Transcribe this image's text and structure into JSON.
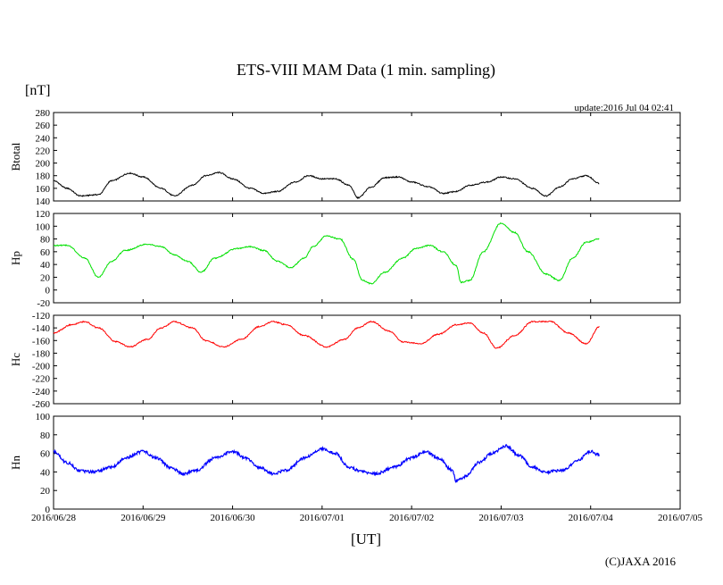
{
  "chart_data": {
    "type": "line",
    "title": "ETS-VIII MAM Data (1 min. sampling)",
    "unit_label": "[nT]",
    "update_label": "update:2016 Jul 04 02:41",
    "xlabel": "[UT]",
    "copyright": "(C)JAXA 2016",
    "x_ticks": [
      "2016/06/28",
      "2016/06/29",
      "2016/06/30",
      "2016/07/01",
      "2016/07/02",
      "2016/07/03",
      "2016/07/04",
      "2016/07/05"
    ],
    "x_unit": "days since 2016/06/28 00:00 UT",
    "xlim": [
      0,
      7
    ],
    "panels": [
      {
        "name": "Btotal",
        "color": "#000000",
        "ylim": [
          140,
          280
        ],
        "ticks": [
          "280",
          "260",
          "240",
          "220",
          "200",
          "180",
          "160",
          "140"
        ],
        "x": [
          0,
          0.15,
          0.3,
          0.5,
          0.65,
          0.85,
          1.0,
          1.2,
          1.35,
          1.55,
          1.7,
          1.85,
          2.0,
          2.2,
          2.35,
          2.5,
          2.7,
          2.85,
          3.0,
          3.15,
          3.3,
          3.4,
          3.55,
          3.7,
          3.85,
          4.0,
          4.2,
          4.35,
          4.5,
          4.65,
          4.85,
          5.0,
          5.15,
          5.35,
          5.5,
          5.65,
          5.8,
          5.95,
          6.1
        ],
        "values": [
          172,
          160,
          148,
          150,
          172,
          184,
          178,
          160,
          148,
          165,
          180,
          185,
          175,
          160,
          152,
          155,
          170,
          180,
          175,
          175,
          165,
          145,
          162,
          177,
          178,
          170,
          162,
          152,
          155,
          165,
          170,
          178,
          175,
          160,
          148,
          162,
          175,
          180,
          168
        ]
      },
      {
        "name": "Hp",
        "color": "#00e000",
        "ylim": [
          -20,
          120
        ],
        "ticks": [
          "120",
          "100",
          "80",
          "60",
          "40",
          "20",
          "0",
          "-20"
        ],
        "x": [
          0,
          0.15,
          0.35,
          0.5,
          0.65,
          0.8,
          1.05,
          1.2,
          1.35,
          1.5,
          1.65,
          1.8,
          2.05,
          2.2,
          2.35,
          2.5,
          2.65,
          2.8,
          2.9,
          3.05,
          3.2,
          3.35,
          3.45,
          3.55,
          3.7,
          3.9,
          4.05,
          4.2,
          4.35,
          4.5,
          4.55,
          4.65,
          4.8,
          5.0,
          5.15,
          5.3,
          5.5,
          5.65,
          5.8,
          5.95,
          6.1
        ],
        "values": [
          70,
          70,
          50,
          20,
          45,
          62,
          72,
          68,
          55,
          45,
          28,
          50,
          65,
          68,
          62,
          45,
          35,
          50,
          68,
          85,
          80,
          48,
          15,
          10,
          28,
          50,
          65,
          70,
          60,
          38,
          12,
          15,
          60,
          105,
          90,
          60,
          25,
          15,
          50,
          75,
          80
        ]
      },
      {
        "name": "Hc",
        "color": "#ff0000",
        "ylim": [
          -260,
          -120
        ],
        "ticks": [
          "-120",
          "-140",
          "-160",
          "-180",
          "-200",
          "-220",
          "-240",
          "-260"
        ],
        "x": [
          0,
          0.2,
          0.35,
          0.5,
          0.7,
          0.85,
          1.05,
          1.2,
          1.35,
          1.55,
          1.7,
          1.9,
          2.1,
          2.3,
          2.45,
          2.6,
          2.8,
          3.05,
          3.25,
          3.4,
          3.55,
          3.75,
          3.9,
          4.1,
          4.3,
          4.5,
          4.65,
          4.8,
          4.95,
          5.15,
          5.35,
          5.55,
          5.75,
          5.95,
          6.1
        ],
        "values": [
          -148,
          -135,
          -130,
          -140,
          -162,
          -170,
          -158,
          -140,
          -130,
          -140,
          -160,
          -170,
          -158,
          -138,
          -130,
          -135,
          -152,
          -170,
          -158,
          -140,
          -130,
          -145,
          -162,
          -165,
          -150,
          -135,
          -132,
          -148,
          -172,
          -152,
          -130,
          -130,
          -148,
          -165,
          -138
        ]
      },
      {
        "name": "Hn",
        "color": "#0000ff",
        "ylim": [
          0,
          100
        ],
        "ticks": [
          "100",
          "80",
          "60",
          "40",
          "20",
          "0"
        ],
        "x": [
          0,
          0.15,
          0.3,
          0.45,
          0.65,
          0.8,
          1.0,
          1.15,
          1.3,
          1.45,
          1.6,
          1.8,
          2.0,
          2.15,
          2.3,
          2.45,
          2.6,
          2.8,
          3.0,
          3.15,
          3.3,
          3.45,
          3.6,
          3.8,
          4.0,
          4.15,
          4.3,
          4.45,
          4.5,
          4.6,
          4.75,
          4.9,
          5.05,
          5.2,
          5.35,
          5.5,
          5.7,
          5.85,
          6.0,
          6.1
        ],
        "values": [
          62,
          50,
          41,
          40,
          45,
          55,
          62,
          55,
          45,
          38,
          42,
          55,
          62,
          55,
          45,
          38,
          42,
          55,
          65,
          60,
          45,
          40,
          38,
          45,
          55,
          62,
          55,
          42,
          30,
          35,
          50,
          60,
          68,
          58,
          45,
          40,
          42,
          52,
          62,
          58
        ]
      }
    ]
  }
}
